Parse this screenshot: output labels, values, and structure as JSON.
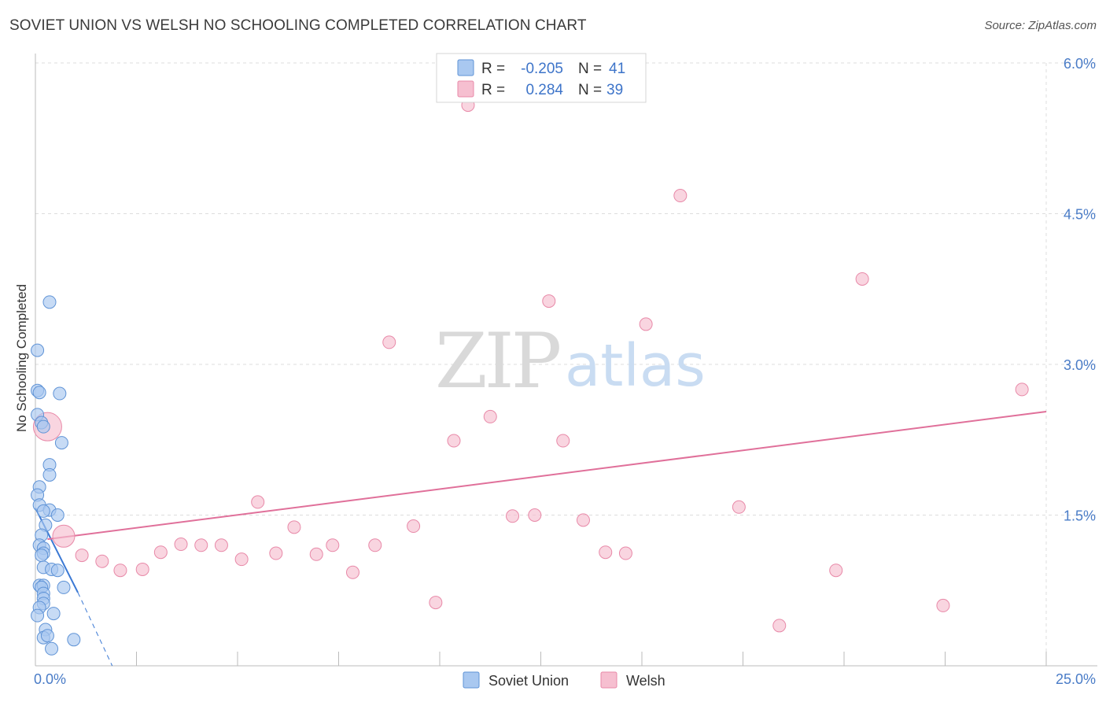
{
  "header": {
    "title": "SOVIET UNION VS WELSH NO SCHOOLING COMPLETED CORRELATION CHART",
    "source": "Source: ZipAtlas.com"
  },
  "watermark": {
    "zip": "ZIP",
    "atlas": "atlas"
  },
  "stats": [
    {
      "r_label": "R =",
      "r_value": "-0.205",
      "n_label": "N =",
      "n_value": "41"
    },
    {
      "r_label": "R =",
      "r_value": "0.284",
      "n_label": "N =",
      "n_value": "39"
    }
  ],
  "legend": {
    "series1": "Soviet Union",
    "series2": "Welsh"
  },
  "colors": {
    "soviet_fill": "#a9c8f0",
    "soviet_stroke": "#5f93d6",
    "soviet_line": "#3a78d4",
    "welsh_fill": "#f6bfd0",
    "welsh_stroke": "#e889a8",
    "welsh_line": "#e0709a",
    "grid": "#dddddd",
    "tick_text": "#4a7cc7"
  },
  "chart_data": {
    "type": "scatter",
    "ylabel": "No Schooling Completed",
    "xlim": [
      0,
      25
    ],
    "ylim": [
      0,
      6
    ],
    "x_tick_labels": [
      {
        "value": 0,
        "label": "0.0%"
      },
      {
        "value": 25,
        "label": "25.0%"
      }
    ],
    "y_tick_labels": [
      {
        "value": 1.5,
        "label": "1.5%"
      },
      {
        "value": 3.0,
        "label": "3.0%"
      },
      {
        "value": 4.5,
        "label": "4.5%"
      },
      {
        "value": 6.0,
        "label": "6.0%"
      }
    ],
    "series": [
      {
        "name": "Soviet Union",
        "points": [
          [
            0.35,
            3.62
          ],
          [
            0.05,
            3.14
          ],
          [
            0.05,
            2.74
          ],
          [
            0.1,
            2.72
          ],
          [
            0.6,
            2.71
          ],
          [
            0.05,
            2.5
          ],
          [
            0.15,
            2.42
          ],
          [
            0.2,
            2.38
          ],
          [
            0.65,
            2.22
          ],
          [
            0.35,
            2.0
          ],
          [
            0.35,
            1.9
          ],
          [
            0.1,
            1.78
          ],
          [
            0.05,
            1.7
          ],
          [
            0.1,
            1.6
          ],
          [
            0.35,
            1.55
          ],
          [
            0.2,
            1.54
          ],
          [
            0.55,
            1.5
          ],
          [
            0.25,
            1.4
          ],
          [
            0.15,
            1.3
          ],
          [
            0.1,
            1.2
          ],
          [
            0.2,
            1.17
          ],
          [
            0.2,
            1.12
          ],
          [
            0.15,
            1.1
          ],
          [
            0.2,
            0.98
          ],
          [
            0.4,
            0.96
          ],
          [
            0.55,
            0.95
          ],
          [
            0.1,
            0.8
          ],
          [
            0.2,
            0.8
          ],
          [
            0.15,
            0.78
          ],
          [
            0.7,
            0.78
          ],
          [
            0.2,
            0.72
          ],
          [
            0.2,
            0.67
          ],
          [
            0.2,
            0.62
          ],
          [
            0.1,
            0.58
          ],
          [
            0.45,
            0.52
          ],
          [
            0.25,
            0.36
          ],
          [
            0.2,
            0.28
          ],
          [
            0.3,
            0.3
          ],
          [
            0.95,
            0.26
          ],
          [
            0.4,
            0.17
          ],
          [
            0.05,
            0.5
          ]
        ]
      },
      {
        "name": "Welsh",
        "points": [
          [
            0.3,
            2.38
          ],
          [
            0.7,
            1.29
          ],
          [
            1.15,
            1.1
          ],
          [
            1.65,
            1.04
          ],
          [
            2.1,
            0.95
          ],
          [
            2.65,
            0.96
          ],
          [
            3.1,
            1.13
          ],
          [
            3.6,
            1.21
          ],
          [
            4.1,
            1.2
          ],
          [
            4.6,
            1.2
          ],
          [
            5.1,
            1.06
          ],
          [
            5.5,
            1.63
          ],
          [
            5.95,
            1.12
          ],
          [
            6.4,
            1.38
          ],
          [
            6.95,
            1.11
          ],
          [
            7.35,
            1.2
          ],
          [
            7.85,
            0.93
          ],
          [
            8.4,
            1.2
          ],
          [
            8.75,
            3.22
          ],
          [
            9.35,
            1.39
          ],
          [
            9.9,
            0.63
          ],
          [
            10.35,
            2.24
          ],
          [
            10.7,
            5.58
          ],
          [
            11.25,
            2.48
          ],
          [
            11.8,
            1.49
          ],
          [
            12.35,
            1.5
          ],
          [
            12.7,
            3.63
          ],
          [
            13.05,
            2.24
          ],
          [
            13.55,
            1.45
          ],
          [
            14.1,
            1.13
          ],
          [
            14.6,
            1.12
          ],
          [
            15.1,
            3.4
          ],
          [
            15.95,
            4.68
          ],
          [
            17.4,
            1.58
          ],
          [
            18.4,
            0.4
          ],
          [
            19.8,
            0.95
          ],
          [
            20.45,
            3.85
          ],
          [
            22.45,
            0.6
          ],
          [
            24.4,
            2.75
          ]
        ]
      }
    ],
    "trendlines": [
      {
        "series": "Soviet Union",
        "solid_from": [
          0.0,
          1.57
        ],
        "solid_to": [
          1.05,
          0.73
        ],
        "dashed_to": [
          1.9,
          0.0
        ]
      },
      {
        "series": "Welsh",
        "from": [
          0.3,
          1.26
        ],
        "to": [
          25.0,
          2.53
        ]
      }
    ]
  }
}
